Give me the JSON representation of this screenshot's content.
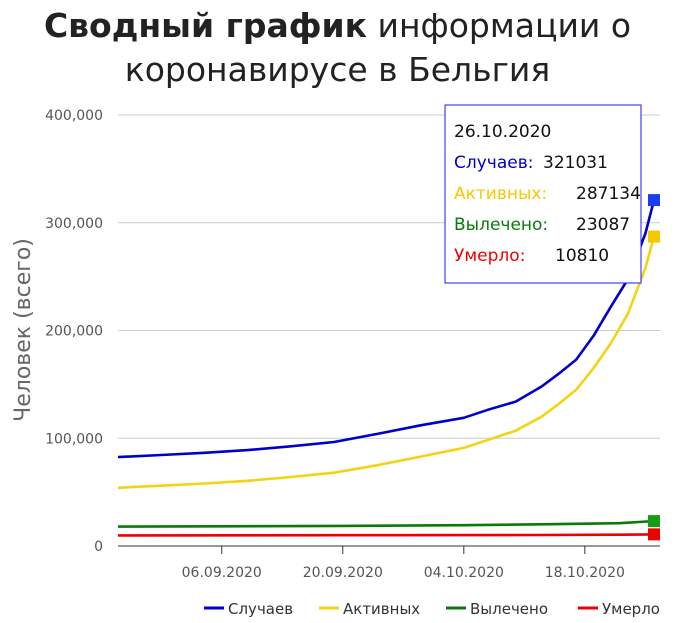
{
  "chart_data": {
    "type": "line",
    "title_bold": "Сводный график",
    "title_rest_line1": " информации о",
    "title_line2": "коронавирусе в Бельгия",
    "ylabel": "Человек (всего)",
    "ylim": [
      0,
      400000
    ],
    "y_ticks": [
      "0",
      "100,000",
      "200,000",
      "300,000",
      "400,000"
    ],
    "x_start": "2020-08-25",
    "x_end": "2020-10-26",
    "x_ticks": [
      {
        "date": "2020-09-06",
        "label": "06.09.2020"
      },
      {
        "date": "2020-09-20",
        "label": "20.09.2020"
      },
      {
        "date": "2020-10-04",
        "label": "04.10.2020"
      },
      {
        "date": "2020-10-18",
        "label": "18.10.2020"
      }
    ],
    "series": [
      {
        "name": "Случаев",
        "color": "#0000cc",
        "marker": "#1a3df2",
        "points": [
          [
            "2020-08-25",
            82500
          ],
          [
            "2020-08-30",
            84500
          ],
          [
            "2020-09-04",
            86500
          ],
          [
            "2020-09-09",
            89000
          ],
          [
            "2020-09-14",
            92500
          ],
          [
            "2020-09-19",
            96500
          ],
          [
            "2020-09-24",
            104000
          ],
          [
            "2020-09-29",
            112000
          ],
          [
            "2020-10-04",
            119000
          ],
          [
            "2020-10-07",
            127000
          ],
          [
            "2020-10-10",
            134000
          ],
          [
            "2020-10-13",
            148000
          ],
          [
            "2020-10-15",
            160000
          ],
          [
            "2020-10-17",
            173000
          ],
          [
            "2020-10-19",
            195000
          ],
          [
            "2020-10-21",
            222000
          ],
          [
            "2020-10-23",
            248000
          ],
          [
            "2020-10-25",
            290000
          ],
          [
            "2020-10-26",
            321031
          ]
        ]
      },
      {
        "name": "Активных",
        "color": "#f5d312",
        "marker": "#f5c800",
        "points": [
          [
            "2020-08-25",
            54000
          ],
          [
            "2020-08-30",
            56000
          ],
          [
            "2020-09-04",
            58000
          ],
          [
            "2020-09-09",
            60500
          ],
          [
            "2020-09-14",
            64000
          ],
          [
            "2020-09-19",
            68000
          ],
          [
            "2020-09-24",
            75000
          ],
          [
            "2020-09-29",
            83000
          ],
          [
            "2020-10-04",
            91000
          ],
          [
            "2020-10-07",
            99000
          ],
          [
            "2020-10-10",
            107000
          ],
          [
            "2020-10-13",
            120000
          ],
          [
            "2020-10-15",
            132000
          ],
          [
            "2020-10-17",
            145000
          ],
          [
            "2020-10-19",
            165000
          ],
          [
            "2020-10-21",
            188000
          ],
          [
            "2020-10-23",
            216000
          ],
          [
            "2020-10-25",
            258000
          ],
          [
            "2020-10-26",
            287134
          ]
        ]
      },
      {
        "name": "Вылечено",
        "color": "#0a7a0a",
        "marker": "#179c17",
        "points": [
          [
            "2020-08-25",
            18000
          ],
          [
            "2020-09-06",
            18300
          ],
          [
            "2020-09-20",
            18700
          ],
          [
            "2020-10-04",
            19300
          ],
          [
            "2020-10-14",
            20200
          ],
          [
            "2020-10-22",
            21200
          ],
          [
            "2020-10-26",
            23087
          ]
        ]
      },
      {
        "name": "Умерло",
        "color": "#ee0000",
        "marker": "#ee0000",
        "points": [
          [
            "2020-08-25",
            9800
          ],
          [
            "2020-09-20",
            10000
          ],
          [
            "2020-10-12",
            10200
          ],
          [
            "2020-10-22",
            10500
          ],
          [
            "2020-10-26",
            10810
          ]
        ]
      }
    ],
    "tooltip": {
      "date": "26.10.2020",
      "rows": [
        {
          "label": "Случаев:",
          "value": "321031",
          "color": "#0000cc"
        },
        {
          "label": "Активных:",
          "value": "287134",
          "color": "#f5c800"
        },
        {
          "label": "Вылечено:",
          "value": "23087",
          "color": "#0a7a0a"
        },
        {
          "label": "Умерло:",
          "value": "10810",
          "color": "#ee0000"
        }
      ]
    },
    "grid": true,
    "legend_position": "bottom-right"
  }
}
